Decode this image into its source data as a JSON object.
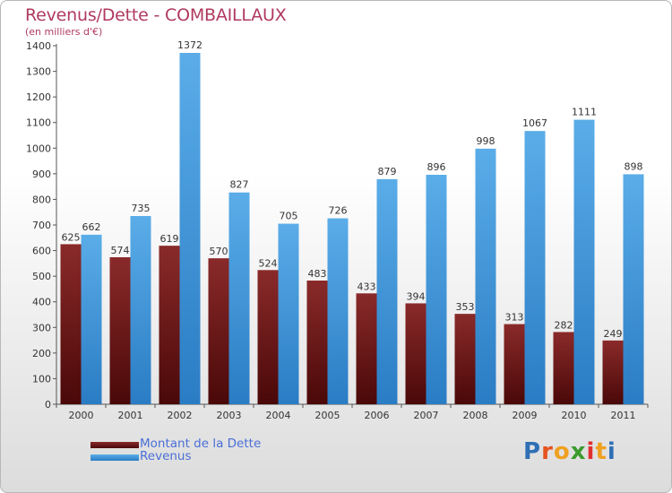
{
  "title": "Revenus/Dette - COMBAILLAUX",
  "subtitle": "(en milliers d'€)",
  "colors": {
    "debt_top": "#8a2a2a",
    "debt_bottom": "#4a0808",
    "revenue_top": "#5aade8",
    "revenue_bottom": "#2a7cc4",
    "title": "#b03a5f",
    "legend_text": "#4a6fd6"
  },
  "legend": [
    {
      "label": "Montant de la Dette",
      "icon": "dark-red-swatch"
    },
    {
      "label": "Revenus",
      "icon": "blue-swatch"
    }
  ],
  "logo": {
    "letters": [
      "P",
      "r",
      "o",
      "x",
      "i",
      "t",
      "i"
    ],
    "colors": [
      "#2f6fb5",
      "#e6531f",
      "#f0a020",
      "#3b9a2e",
      "#e03030",
      "#f0a020",
      "#2f6fb5"
    ]
  },
  "chart_data": {
    "type": "bar",
    "title": "Revenus/Dette - COMBAILLAUX",
    "subtitle": "(en milliers d'€)",
    "categories": [
      "2000",
      "2001",
      "2002",
      "2003",
      "2004",
      "2005",
      "2006",
      "2007",
      "2008",
      "2009",
      "2010",
      "2011"
    ],
    "series": [
      {
        "name": "Montant de la Dette",
        "values": [
          625,
          574,
          619,
          570,
          524,
          483,
          433,
          394,
          353,
          313,
          282,
          249
        ]
      },
      {
        "name": "Revenus",
        "values": [
          662,
          735,
          1372,
          827,
          705,
          726,
          879,
          896,
          998,
          1067,
          1111,
          898
        ]
      }
    ],
    "ylim": [
      0,
      1400
    ],
    "yticks": [
      0,
      100,
      200,
      300,
      400,
      500,
      600,
      700,
      800,
      900,
      1000,
      1100,
      1200,
      1300,
      1400
    ],
    "grid": false,
    "legend_position": "bottom-left"
  }
}
